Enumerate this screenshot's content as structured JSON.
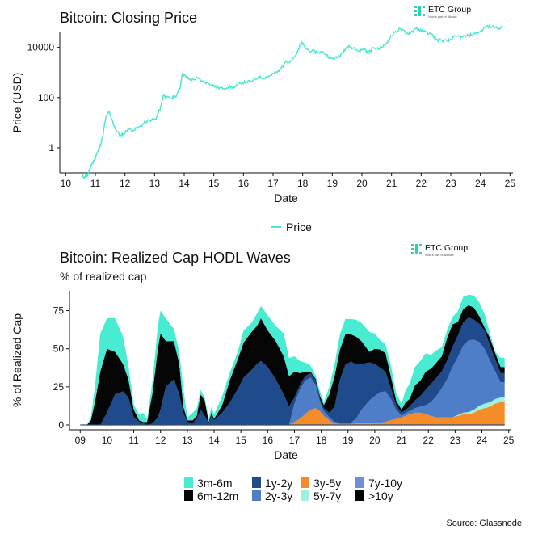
{
  "brand": {
    "name": "ETC Group",
    "tagline": "Now a part of Bitwise",
    "color": "#2fd0b4"
  },
  "source": "Source: Glassnode",
  "chart_data": [
    {
      "type": "line",
      "title": "Bitcoin: Closing Price",
      "xlabel": "Date",
      "ylabel": "Price (USD)",
      "yscale": "log",
      "xlim": [
        2009.8,
        2025.1
      ],
      "ylim_log10": [
        -1.0,
        4.6
      ],
      "x_ticks": [
        "10",
        "11",
        "12",
        "13",
        "14",
        "15",
        "16",
        "17",
        "18",
        "19",
        "20",
        "21",
        "22",
        "23",
        "24",
        "25"
      ],
      "y_ticks": [
        {
          "value": 1,
          "label": "1"
        },
        {
          "value": 100,
          "label": "100"
        },
        {
          "value": 10000,
          "label": "10000"
        }
      ],
      "grid": false,
      "legend": {
        "position": "bottom",
        "entries": [
          "Price"
        ]
      },
      "series": [
        {
          "name": "Price",
          "color": "#4ce8d2",
          "x": [
            2010.55,
            2010.65,
            2010.75,
            2010.85,
            2010.95,
            2011.05,
            2011.15,
            2011.25,
            2011.35,
            2011.45,
            2011.55,
            2011.7,
            2011.85,
            2011.95,
            2012.1,
            2012.3,
            2012.5,
            2012.7,
            2012.9,
            2013.05,
            2013.2,
            2013.3,
            2013.4,
            2013.55,
            2013.7,
            2013.85,
            2013.93,
            2014.0,
            2014.1,
            2014.25,
            2014.45,
            2014.6,
            2014.8,
            2015.0,
            2015.1,
            2015.3,
            2015.5,
            2015.7,
            2015.9,
            2016.1,
            2016.3,
            2016.5,
            2016.7,
            2016.9,
            2017.0,
            2017.2,
            2017.4,
            2017.6,
            2017.8,
            2017.96,
            2018.1,
            2018.3,
            2018.5,
            2018.7,
            2018.9,
            2019.0,
            2019.2,
            2019.4,
            2019.5,
            2019.7,
            2019.9,
            2020.1,
            2020.2,
            2020.4,
            2020.6,
            2020.8,
            2020.95,
            2021.1,
            2021.3,
            2021.5,
            2021.65,
            2021.85,
            2022.0,
            2022.2,
            2022.4,
            2022.5,
            2022.7,
            2022.9,
            2023.0,
            2023.2,
            2023.4,
            2023.6,
            2023.8,
            2024.0,
            2024.2,
            2024.4,
            2024.6,
            2024.75
          ],
          "y": [
            0.07,
            0.07,
            0.08,
            0.2,
            0.3,
            0.6,
            1.0,
            3.0,
            15,
            28,
            14,
            5,
            3.0,
            3.5,
            5.5,
            5,
            7,
            11,
            13,
            14,
            40,
            130,
            100,
            90,
            110,
            200,
            900,
            800,
            600,
            500,
            600,
            450,
            380,
            300,
            250,
            230,
            270,
            250,
            380,
            420,
            440,
            650,
            600,
            750,
            900,
            1100,
            2500,
            3000,
            5500,
            16000,
            9000,
            7000,
            6500,
            6400,
            4000,
            3600,
            4000,
            8000,
            11000,
            9500,
            7200,
            8500,
            6000,
            9500,
            9200,
            13000,
            24000,
            40000,
            55000,
            35000,
            40000,
            60000,
            45000,
            40000,
            30000,
            20000,
            19500,
            17000,
            21000,
            28000,
            26000,
            29000,
            35000,
            43000,
            68000,
            65000,
            60000,
            63000
          ]
        }
      ]
    },
    {
      "type": "area",
      "stacked": true,
      "title": "Bitcoin: Realized Cap HODL Waves",
      "subtitle": "% of realized cap",
      "xlabel": "Date",
      "ylabel": "% of Realized Cap",
      "xlim": [
        2008.6,
        2025.1
      ],
      "ylim": [
        0,
        88
      ],
      "x_ticks": [
        "09",
        "10",
        "11",
        "12",
        "13",
        "14",
        "15",
        "16",
        "17",
        "18",
        "19",
        "20",
        "21",
        "22",
        "23",
        "24",
        "25"
      ],
      "y_ticks": [
        0,
        25,
        50,
        75
      ],
      "grid": false,
      "legend": {
        "position": "bottom",
        "entries": [
          "3m-6m",
          "1y-2y",
          "3y-5y",
          "7y-10y",
          "6m-12m",
          "2y-3y",
          "5y-7y",
          ">10y"
        ]
      },
      "x": [
        2009.0,
        2009.25,
        2009.4,
        2009.55,
        2009.75,
        2010.0,
        2010.3,
        2010.6,
        2010.8,
        2011.0,
        2011.2,
        2011.35,
        2011.5,
        2011.7,
        2011.9,
        2012.0,
        2012.2,
        2012.5,
        2012.7,
        2012.85,
        2013.0,
        2013.2,
        2013.35,
        2013.5,
        2013.65,
        2013.8,
        2013.9,
        2014.0,
        2014.3,
        2014.6,
        2014.9,
        2015.1,
        2015.4,
        2015.6,
        2015.75,
        2016.0,
        2016.3,
        2016.6,
        2016.8,
        2017.0,
        2017.2,
        2017.4,
        2017.6,
        2017.8,
        2017.95,
        2018.1,
        2018.3,
        2018.5,
        2018.7,
        2018.9,
        2019.1,
        2019.3,
        2019.5,
        2019.8,
        2020.0,
        2020.2,
        2020.4,
        2020.6,
        2020.8,
        2021.0,
        2021.15,
        2021.3,
        2021.5,
        2021.7,
        2021.9,
        2022.1,
        2022.3,
        2022.5,
        2022.7,
        2022.9,
        2023.1,
        2023.3,
        2023.5,
        2023.7,
        2023.9,
        2024.1,
        2024.3,
        2024.5,
        2024.7,
        2024.85
      ],
      "series": [
        {
          "name": "3y-5y",
          "color": "#f48c28",
          "values": [
            0,
            0,
            0,
            0,
            0,
            0,
            0,
            0,
            0,
            0,
            0,
            0,
            0,
            0,
            0,
            0,
            0,
            0,
            0,
            0,
            0,
            0,
            0,
            0,
            0,
            0,
            0,
            0,
            0,
            0,
            0,
            0,
            0,
            0,
            0,
            0,
            0,
            0,
            0,
            2,
            4,
            7,
            10,
            11,
            9,
            6,
            3,
            1,
            0.5,
            0.5,
            0.5,
            1,
            1,
            1,
            1,
            1.5,
            2,
            3,
            4,
            5,
            6,
            7,
            8,
            8,
            7,
            6,
            5,
            5,
            5,
            5,
            6,
            7,
            7,
            8,
            10,
            11,
            12,
            14,
            15,
            15
          ]
        },
        {
          "name": "5y-7y",
          "color": "#9bf2de",
          "values": [
            0,
            0,
            0,
            0,
            0,
            0,
            0,
            0,
            0,
            0,
            0,
            0,
            0,
            0,
            0,
            0,
            0,
            0,
            0,
            0,
            0,
            0,
            0,
            0,
            0,
            0,
            0,
            0,
            0,
            0,
            0,
            0,
            0,
            0,
            0,
            0,
            0,
            0,
            0,
            0,
            0,
            0,
            0,
            0,
            0,
            0,
            0,
            0,
            0,
            0,
            0,
            0,
            0,
            0,
            0,
            0,
            0,
            0,
            0,
            0,
            0,
            0,
            0,
            0,
            0,
            0,
            0,
            0,
            0,
            0,
            0.5,
            1,
            1.5,
            2,
            2.5,
            3,
            3,
            3,
            3,
            3
          ]
        },
        {
          "name": "7y-10y",
          "color": "#6f8fd6",
          "values": [
            0,
            0,
            0,
            0,
            0,
            0,
            0,
            0,
            0,
            0,
            0,
            0,
            0,
            0,
            0,
            0,
            0,
            0,
            0,
            0,
            0,
            0,
            0,
            0,
            0,
            0,
            0,
            0,
            0,
            0,
            0,
            0,
            0,
            0,
            0,
            0,
            0,
            0,
            0,
            0,
            0,
            0,
            0,
            0,
            0,
            0,
            0,
            0,
            0,
            0,
            0,
            0,
            0,
            0,
            0,
            0,
            0,
            0,
            0,
            0,
            0,
            0,
            0,
            0,
            0,
            0,
            0,
            0,
            0,
            0,
            0,
            0,
            0,
            0,
            0,
            0,
            0,
            0,
            0,
            0
          ]
        },
        {
          "name": "2y-3y",
          "color": "#4f7ec9",
          "values": [
            0,
            0,
            0,
            0,
            0,
            0,
            0,
            0,
            0,
            0,
            0,
            0,
            0,
            0,
            0,
            0,
            0,
            0,
            0,
            0,
            0,
            0,
            0,
            0,
            0,
            0,
            0,
            0,
            0,
            0,
            0,
            0,
            0,
            0,
            0,
            0,
            0,
            0,
            0,
            12,
            19,
            22,
            21,
            15,
            6,
            3,
            2,
            1,
            1,
            1,
            1,
            3,
            9,
            15,
            18,
            20,
            20,
            14,
            6,
            1,
            2,
            2,
            3,
            4,
            6,
            9,
            14,
            19,
            25,
            33,
            38,
            44,
            47,
            46,
            42,
            36,
            27,
            18,
            10,
            10
          ]
        },
        {
          "name": "1y-2y",
          "color": "#1f4a8c",
          "values": [
            0,
            0,
            0,
            0,
            0,
            8,
            20,
            22,
            18,
            5,
            2,
            1,
            0,
            1,
            5,
            10,
            25,
            30,
            20,
            8,
            2,
            1,
            4,
            10,
            6,
            1,
            6,
            3,
            8,
            15,
            24,
            31,
            36,
            40,
            42,
            38,
            30,
            20,
            12,
            4,
            3,
            3,
            3,
            3,
            2,
            2,
            3,
            10,
            28,
            38,
            40,
            36,
            30,
            25,
            21,
            16,
            13,
            7,
            3,
            2,
            2,
            3,
            5,
            7,
            10,
            12,
            12,
            11,
            12,
            13,
            14,
            15,
            15,
            13,
            12,
            12,
            10,
            8,
            6,
            6
          ]
        },
        {
          "name": "6m-12m",
          "color": "#050505",
          "values": [
            0,
            0,
            3,
            15,
            35,
            42,
            28,
            18,
            12,
            5,
            1,
            1,
            2,
            20,
            45,
            50,
            30,
            25,
            20,
            4,
            1,
            2,
            2,
            10,
            10,
            1,
            2,
            1,
            5,
            15,
            20,
            23,
            25,
            25,
            28,
            24,
            25,
            25,
            20,
            17,
            8,
            3,
            1,
            1,
            2,
            2,
            12,
            20,
            20,
            20,
            18,
            18,
            15,
            7,
            10,
            12,
            12,
            8,
            3,
            2,
            5,
            5,
            10,
            10,
            12,
            10,
            10,
            10,
            15,
            15,
            9,
            9,
            8,
            8,
            5,
            2,
            5,
            4,
            4,
            4
          ]
        },
        {
          "name": "3m-6m",
          "color": "#47ecd2",
          "values": [
            0,
            0,
            2,
            10,
            25,
            20,
            22,
            18,
            9,
            3,
            4,
            6,
            2,
            8,
            15,
            15,
            15,
            8,
            8,
            12,
            2,
            5,
            5,
            3,
            2,
            2,
            4,
            3,
            6,
            5,
            5,
            8,
            6,
            8,
            8,
            10,
            10,
            15,
            12,
            10,
            8,
            6,
            4,
            2,
            3,
            2,
            5,
            8,
            10,
            10,
            10,
            11,
            12,
            13,
            10,
            6,
            6,
            7,
            5,
            4,
            8,
            10,
            12,
            13,
            12,
            9,
            8,
            6,
            5,
            5,
            7,
            8,
            7,
            8,
            9,
            9,
            3,
            1,
            6,
            6
          ]
        }
      ]
    }
  ]
}
